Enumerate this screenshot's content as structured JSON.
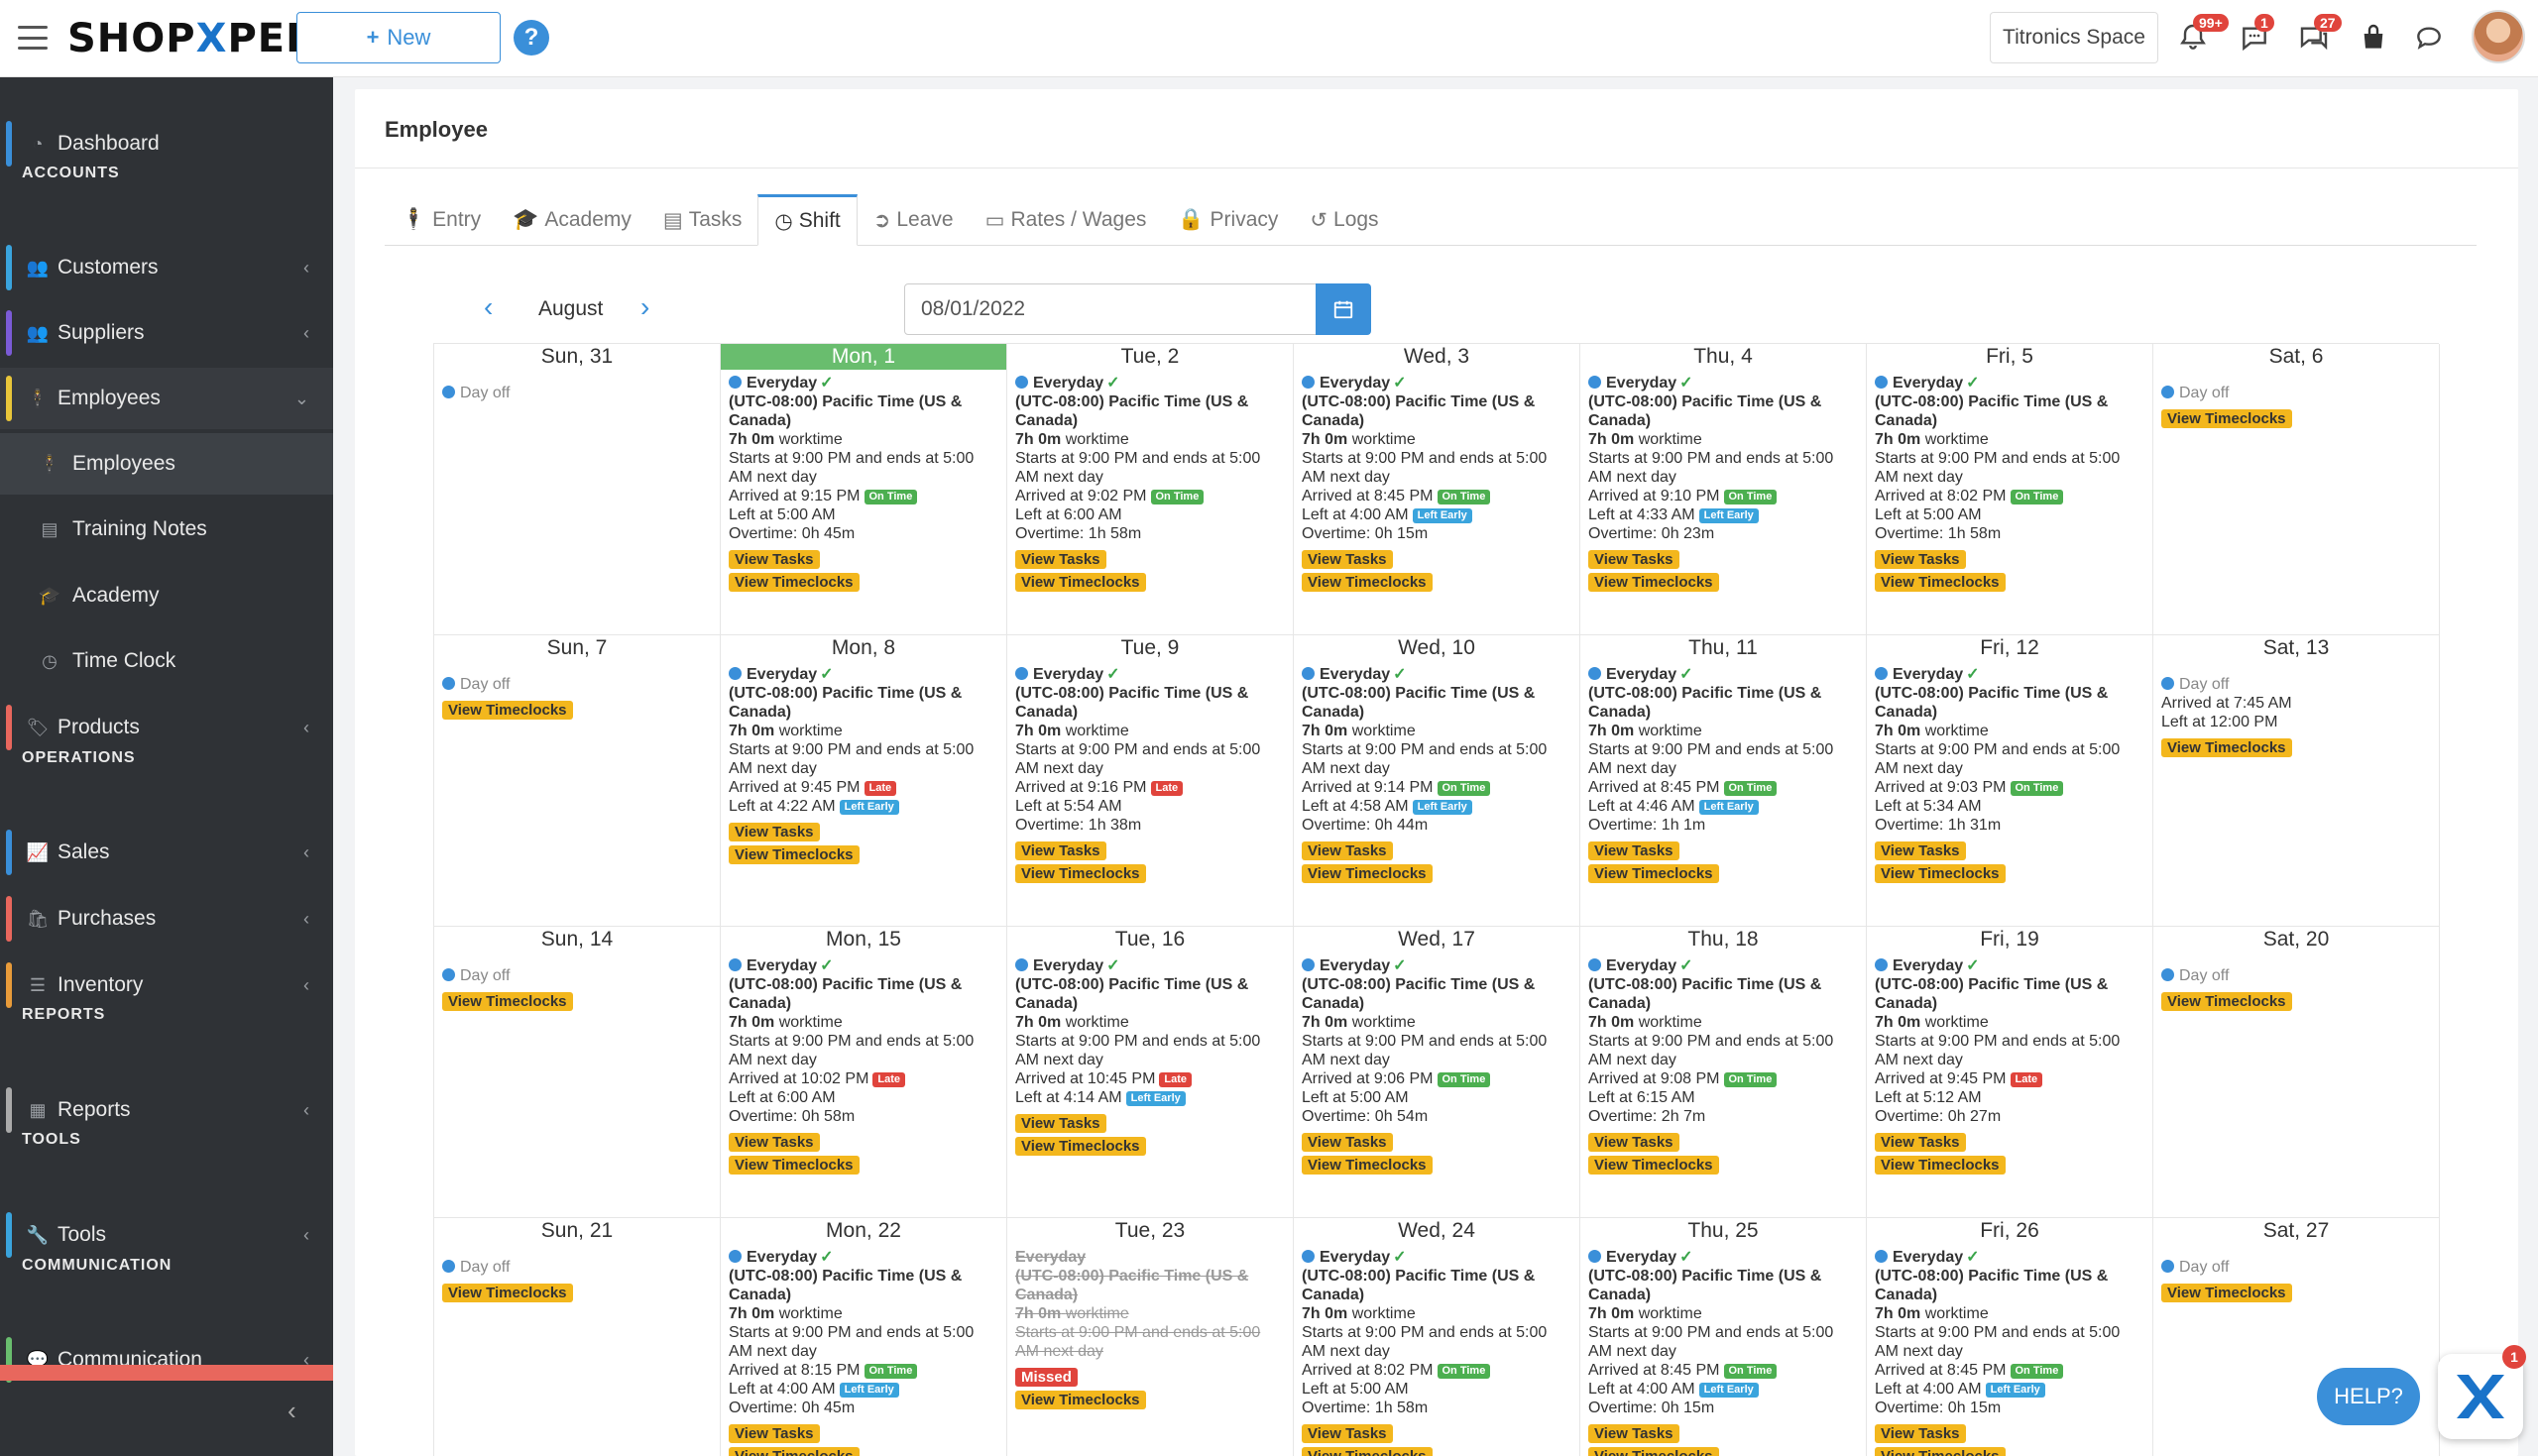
{
  "topbar": {
    "logo_left": "SHOP",
    "logo_x": "X",
    "logo_right": "PERT",
    "new_label": "New",
    "help_glyph": "?",
    "space_label": "Titronics Space",
    "notifications_count": "99+",
    "messages_count": "1",
    "chat_count": "27"
  },
  "sidebar": {
    "dashboard": "Dashboard",
    "h_accounts": "ACCOUNTS",
    "customers": "Customers",
    "suppliers": "Suppliers",
    "employees": "Employees",
    "employees_sub": "Employees",
    "training_notes": "Training Notes",
    "academy": "Academy",
    "time_clock": "Time Clock",
    "products": "Products",
    "h_operations": "OPERATIONS",
    "sales": "Sales",
    "purchases": "Purchases",
    "inventory": "Inventory",
    "h_reports": "REPORTS",
    "reports": "Reports",
    "h_tools": "TOOLS",
    "tools": "Tools",
    "h_communication": "COMMUNICATION",
    "communication": "Communication"
  },
  "page": {
    "title": "Employee",
    "tabs": [
      "Entry",
      "Academy",
      "Tasks",
      "Shift",
      "Leave",
      "Rates / Wages",
      "Privacy",
      "Logs"
    ],
    "month": "August",
    "date_value": "08/01/2022"
  },
  "labels": {
    "day_off": "Day off",
    "everyday": "Everyday",
    "tz": "(UTC-08:00) Pacific Time (US & Canada)",
    "hours": "7h 0m",
    "worktime": "worktime",
    "starts": "Starts at 9:00 PM and ends at 5:00 AM next day",
    "view_tasks": "View Tasks",
    "view_timeclocks": "View Timeclocks",
    "on_time": "On Time",
    "late": "Late",
    "left_early": "Left Early",
    "missed": "Missed"
  },
  "calendar": [
    {
      "head": "Sun, 31",
      "type": "off",
      "timeclocks": false
    },
    {
      "head": "Mon, 1",
      "type": "shift",
      "today": true,
      "arrived": "Arrived at 9:15 PM",
      "arr_badge": "on",
      "left": "Left at 5:00 AM",
      "overtime": "Overtime: 0h 45m"
    },
    {
      "head": "Tue, 2",
      "type": "shift",
      "arrived": "Arrived at 9:02 PM",
      "arr_badge": "on",
      "left": "Left at 6:00 AM",
      "overtime": "Overtime: 1h 58m"
    },
    {
      "head": "Wed, 3",
      "type": "shift",
      "arrived": "Arrived at 8:45 PM",
      "arr_badge": "on",
      "left": "Left at 4:00 AM",
      "left_badge": "early",
      "overtime": "Overtime: 0h 15m"
    },
    {
      "head": "Thu, 4",
      "type": "shift",
      "arrived": "Arrived at 9:10 PM",
      "arr_badge": "on",
      "left": "Left at 4:33 AM",
      "left_badge": "early",
      "overtime": "Overtime: 0h 23m"
    },
    {
      "head": "Fri, 5",
      "type": "shift",
      "arrived": "Arrived at 8:02 PM",
      "arr_badge": "on",
      "left": "Left at 5:00 AM",
      "overtime": "Overtime: 1h 58m"
    },
    {
      "head": "Sat, 6",
      "type": "off",
      "timeclocks": true
    },
    {
      "head": "Sun, 7",
      "type": "off",
      "timeclocks": true
    },
    {
      "head": "Mon, 8",
      "type": "shift",
      "arrived": "Arrived at 9:45 PM",
      "arr_badge": "late",
      "left": "Left at 4:22 AM",
      "left_badge": "early"
    },
    {
      "head": "Tue, 9",
      "type": "shift",
      "arrived": "Arrived at 9:16 PM",
      "arr_badge": "late",
      "left": "Left at 5:54 AM",
      "overtime": "Overtime: 1h 38m"
    },
    {
      "head": "Wed, 10",
      "type": "shift",
      "arrived": "Arrived at 9:14 PM",
      "arr_badge": "on",
      "left": "Left at 4:58 AM",
      "left_badge": "early",
      "overtime": "Overtime: 0h 44m"
    },
    {
      "head": "Thu, 11",
      "type": "shift",
      "arrived": "Arrived at 8:45 PM",
      "arr_badge": "on",
      "left": "Left at 4:46 AM",
      "left_badge": "early",
      "overtime": "Overtime: 1h 1m"
    },
    {
      "head": "Fri, 12",
      "type": "shift",
      "arrived": "Arrived at 9:03 PM",
      "arr_badge": "on",
      "left": "Left at 5:34 AM",
      "overtime": "Overtime: 1h 31m"
    },
    {
      "head": "Sat, 13",
      "type": "off",
      "timeclocks": true,
      "extra": [
        "Arrived at 7:45 AM",
        "Left at 12:00 PM"
      ]
    },
    {
      "head": "Sun, 14",
      "type": "off",
      "timeclocks": true
    },
    {
      "head": "Mon, 15",
      "type": "shift",
      "arrived": "Arrived at 10:02 PM",
      "arr_badge": "late",
      "left": "Left at 6:00 AM",
      "overtime": "Overtime: 0h 58m"
    },
    {
      "head": "Tue, 16",
      "type": "shift",
      "arrived": "Arrived at 10:45 PM",
      "arr_badge": "late",
      "left": "Left at 4:14 AM",
      "left_badge": "early"
    },
    {
      "head": "Wed, 17",
      "type": "shift",
      "arrived": "Arrived at 9:06 PM",
      "arr_badge": "on",
      "left": "Left at 5:00 AM",
      "overtime": "Overtime: 0h 54m"
    },
    {
      "head": "Thu, 18",
      "type": "shift",
      "arrived": "Arrived at 9:08 PM",
      "arr_badge": "on",
      "left": "Left at 6:15 AM",
      "overtime": "Overtime: 2h 7m"
    },
    {
      "head": "Fri, 19",
      "type": "shift",
      "arrived": "Arrived at 9:45 PM",
      "arr_badge": "late",
      "left": "Left at 5:12 AM",
      "overtime": "Overtime: 0h 27m"
    },
    {
      "head": "Sat, 20",
      "type": "off",
      "timeclocks": true
    },
    {
      "head": "Sun, 21",
      "type": "off",
      "timeclocks": true
    },
    {
      "head": "Mon, 22",
      "type": "shift",
      "arrived": "Arrived at 8:15 PM",
      "arr_badge": "on",
      "left": "Left at 4:00 AM",
      "left_badge": "early",
      "overtime": "Overtime: 0h 45m"
    },
    {
      "head": "Tue, 23",
      "type": "missed"
    },
    {
      "head": "Wed, 24",
      "type": "shift",
      "arrived": "Arrived at 8:02 PM",
      "arr_badge": "on",
      "left": "Left at 5:00 AM",
      "overtime": "Overtime: 1h 58m"
    },
    {
      "head": "Thu, 25",
      "type": "shift",
      "arrived": "Arrived at 8:45 PM",
      "arr_badge": "on",
      "left": "Left at 4:00 AM",
      "left_badge": "early",
      "overtime": "Overtime: 0h 15m"
    },
    {
      "head": "Fri, 26",
      "type": "shift",
      "arrived": "Arrived at 8:45 PM",
      "arr_badge": "on",
      "left": "Left at 4:00 AM",
      "left_badge": "early",
      "overtime": "Overtime: 0h 15m"
    },
    {
      "head": "Sat, 27",
      "type": "off",
      "timeclocks": true
    }
  ],
  "widget": {
    "help": "HELP?",
    "badge": "1"
  },
  "colors": {
    "accent": "#3a8fd9",
    "today": "#69bd6e",
    "yellow_button": "#f3b71d",
    "sidebar_bg": "#2f3236"
  }
}
